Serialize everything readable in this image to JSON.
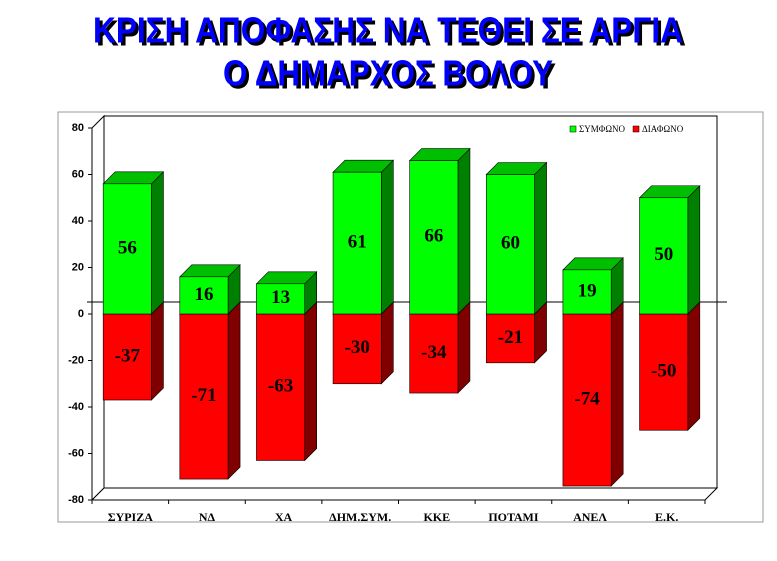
{
  "chart_data": {
    "type": "bar3d",
    "title": [
      "ΚΡΙΣΗ ΑΠΟΦΑΣΗΣ ΝΑ ΤΕΘΕΙ ΣΕ ΑΡΓΙΑ",
      "Ο ΔΗΜΑΡΧΟΣ ΒΟΛΟΥ"
    ],
    "categories": [
      "ΣΥΡΙΖΑ",
      "ΝΔ",
      "ΧΑ",
      "ΔΗΜ.ΣΥΜ.",
      "ΚΚΕ",
      "ΠΟΤΑΜΙ",
      "ΑΝΕΛ",
      "Ε.Κ."
    ],
    "series": [
      {
        "name": "ΣΥΜΦΩΝΟ",
        "color": "#00ff00",
        "values": [
          56,
          16,
          13,
          61,
          66,
          60,
          19,
          50
        ]
      },
      {
        "name": "ΔΙΑΦΩΝΟ",
        "color": "#ff0000",
        "values": [
          -37,
          -71,
          -63,
          -30,
          -34,
          -21,
          -74,
          -50
        ]
      }
    ],
    "ylim": [
      -80,
      80
    ],
    "yticks": [
      -80,
      -60,
      -40,
      -20,
      0,
      20,
      40,
      60,
      80
    ],
    "legend": "top-right"
  }
}
